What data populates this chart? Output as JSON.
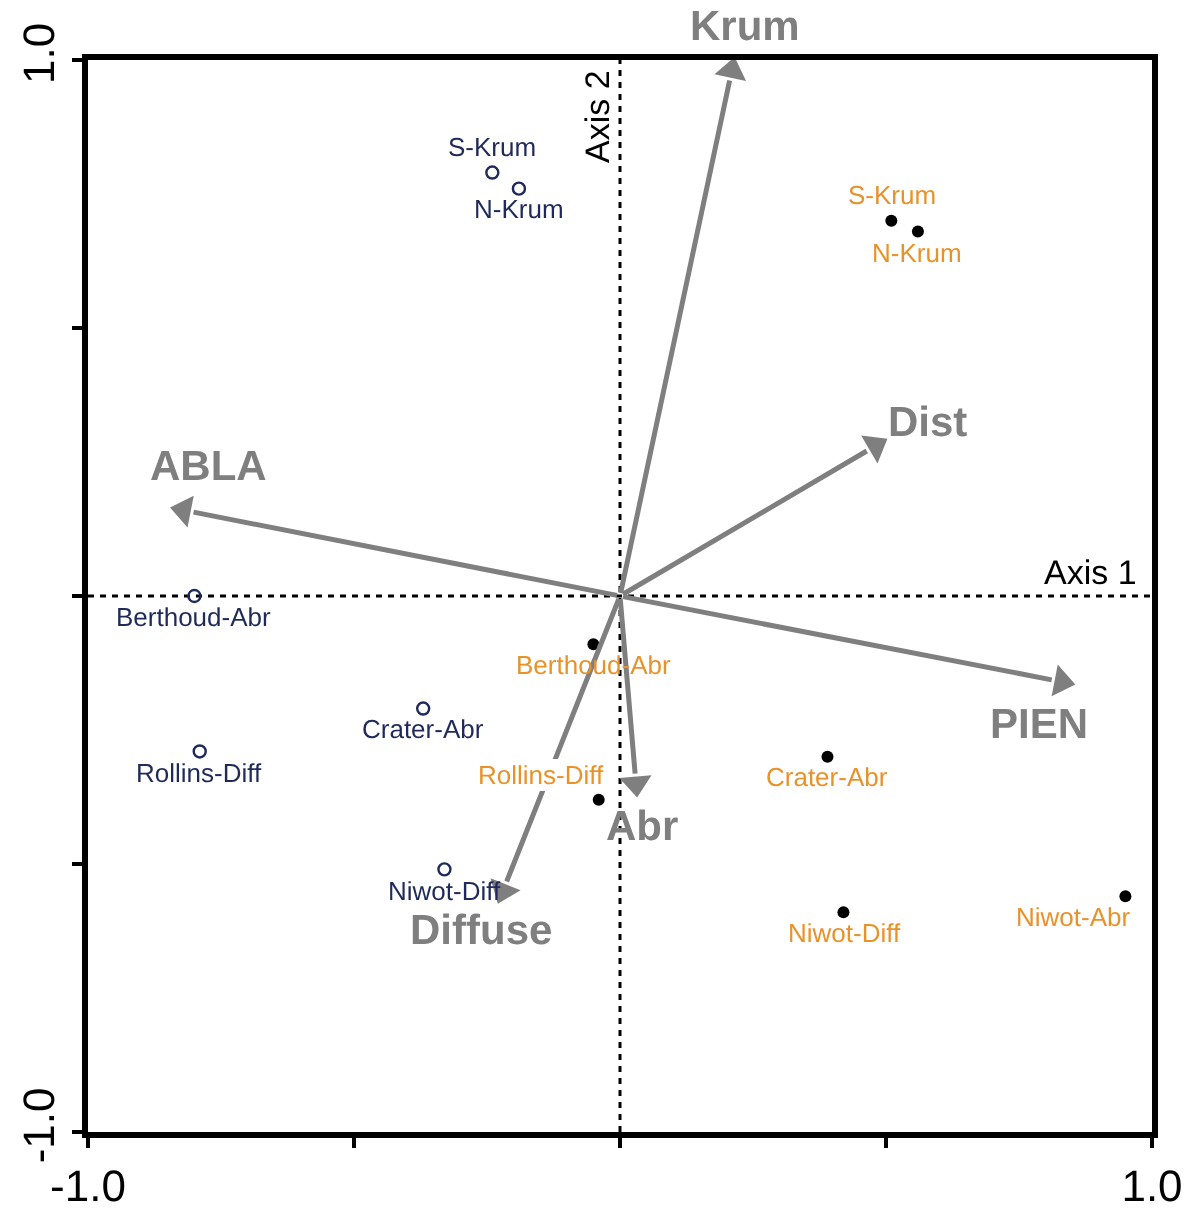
{
  "chart_data": {
    "type": "scatter",
    "xlim": [
      -1,
      1
    ],
    "ylim": [
      -1,
      1
    ],
    "xticks": [
      {
        "value": -1,
        "label": "-1.0"
      },
      {
        "value": -0.5,
        "label": null
      },
      {
        "value": 0,
        "label": null
      },
      {
        "value": 0.5,
        "label": null
      },
      {
        "value": 1,
        "label": "1.0"
      }
    ],
    "yticks": [
      {
        "value": -1,
        "label": "-1.0"
      },
      {
        "value": -0.5,
        "label": null
      },
      {
        "value": 0,
        "label": null
      },
      {
        "value": 0.5,
        "label": null
      },
      {
        "value": 1,
        "label": "1.0"
      }
    ],
    "grid": false,
    "marker": "circle",
    "ref_lines": [
      {
        "axis": "x",
        "value": 0,
        "label": "Axis 2",
        "color": "#000000",
        "line_style": "dotted"
      },
      {
        "axis": "y",
        "value": 0,
        "label": "Axis 1",
        "color": "#000000",
        "line_style": "dotted"
      }
    ],
    "series": [
      {
        "type": "scatter",
        "marker": "triangle",
        "color": "#7f7f7f",
        "x": [
          0.21,
          0.48,
          -0.82,
          0.83,
          0.03,
          -0.22
        ],
        "values": [
          0.98,
          0.28,
          0.16,
          -0.16,
          -0.35,
          -0.55
        ],
        "value_labels": [
          "Krum",
          "Dist",
          "ABLA",
          "PIEN",
          "Abr",
          "Diffuse"
        ]
      },
      {
        "type": "scatter",
        "color": "#1f2a5a",
        "x": [
          -0.24,
          -0.19,
          -0.8,
          -0.37,
          -0.79,
          -0.33
        ],
        "values": [
          0.79,
          0.76,
          0.0,
          -0.21,
          -0.29,
          -0.51
        ],
        "value_labels": [
          "S-Krum",
          "N-Krum",
          "Berthoud-Abr",
          "Crater-Abr",
          "Rollins-Diff",
          "Niwot-Diff"
        ]
      },
      {
        "type": "scatter",
        "color": "#e8922a",
        "colors": [
          "#000000",
          "#000000",
          "#000000",
          "#000000",
          "#000000",
          "#000000",
          "#000000"
        ],
        "x": [
          0.51,
          0.56,
          -0.05,
          -0.04,
          0.39,
          0.42,
          0.95
        ],
        "values": [
          0.7,
          0.68,
          -0.09,
          -0.38,
          -0.3,
          -0.59,
          -0.56
        ],
        "value_labels": [
          "S-Krum",
          "N-Krum",
          "Berthoud-Abr",
          "Rollins-Diff",
          "Crater-Abr",
          "Niwot-Diff",
          "Niwot-Abr"
        ]
      }
    ]
  }
}
